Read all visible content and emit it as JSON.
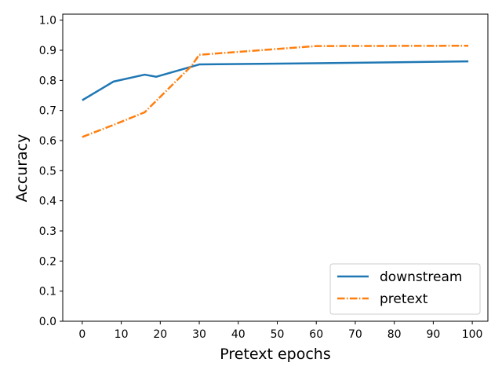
{
  "chart_data": {
    "type": "line",
    "xlabel": "Pretext epochs",
    "ylabel": "Accuracy",
    "xlim": [
      -5,
      104
    ],
    "ylim": [
      0.0,
      1.02
    ],
    "xticks": [
      0,
      10,
      20,
      30,
      40,
      50,
      60,
      70,
      80,
      90,
      100
    ],
    "yticks": [
      0.0,
      0.1,
      0.2,
      0.3,
      0.4,
      0.5,
      0.6,
      0.7,
      0.8,
      0.9,
      1.0
    ],
    "grid": false,
    "legend_position": "lower-right",
    "series": [
      {
        "name": "downstream",
        "color": "#1f77b4",
        "linestyle": "solid",
        "x": [
          0,
          8,
          16,
          19,
          30,
          60,
          99
        ],
        "y": [
          0.734,
          0.796,
          0.819,
          0.812,
          0.853,
          0.857,
          0.863
        ]
      },
      {
        "name": "pretext",
        "color": "#ff7f0e",
        "linestyle": "dashdot",
        "x": [
          0,
          8,
          16,
          28,
          30,
          60,
          99
        ],
        "y": [
          0.612,
          0.652,
          0.694,
          0.848,
          0.885,
          0.914,
          0.915
        ]
      }
    ]
  }
}
